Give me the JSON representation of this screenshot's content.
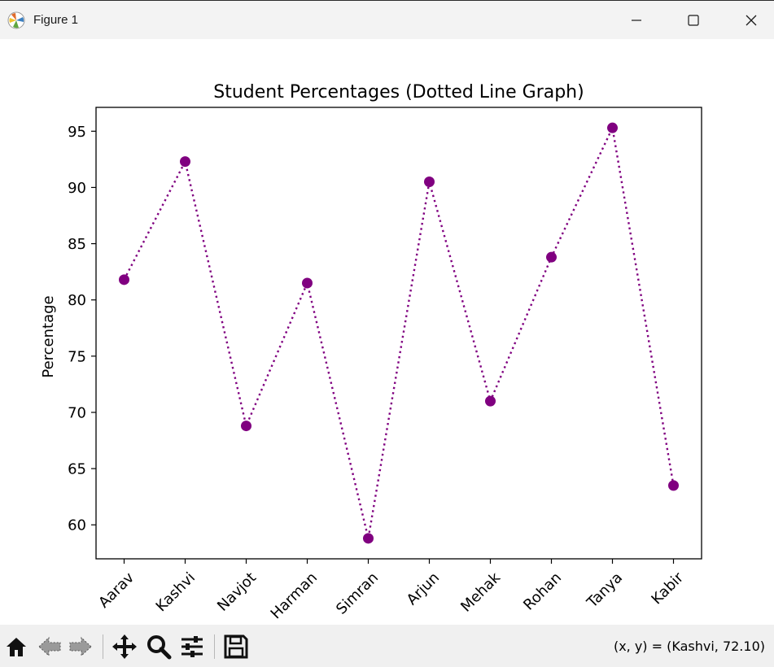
{
  "window": {
    "title": "Figure 1",
    "icon": "matplotlib-logo-icon"
  },
  "toolbar": {
    "buttons": [
      "home-icon",
      "back-arrow-icon",
      "forward-arrow-icon",
      "pan-icon",
      "zoom-icon",
      "configure-subplots-icon",
      "save-icon"
    ],
    "coordinates": "(x, y) = (Kashvi, 72.10)"
  },
  "chart_data": {
    "type": "line",
    "title": "Student Percentages (Dotted Line Graph)",
    "xlabel": "",
    "ylabel": "Percentage",
    "categories": [
      "Aarav",
      "Kashvi",
      "Navjot",
      "Harman",
      "Simran",
      "Arjun",
      "Mehak",
      "Rohan",
      "Tanya",
      "Kabir"
    ],
    "series": [
      {
        "values": [
          81.8,
          92.3,
          68.8,
          81.5,
          58.8,
          90.5,
          71.0,
          83.8,
          95.3,
          63.5
        ],
        "color": "#800080",
        "linestyle": "dotted",
        "marker": "circle"
      }
    ],
    "ylim": [
      56.98,
      97.12
    ],
    "yticks": [
      60,
      65,
      70,
      75,
      80,
      85,
      90,
      95
    ],
    "grid": false,
    "xtick_rotation": 45
  }
}
